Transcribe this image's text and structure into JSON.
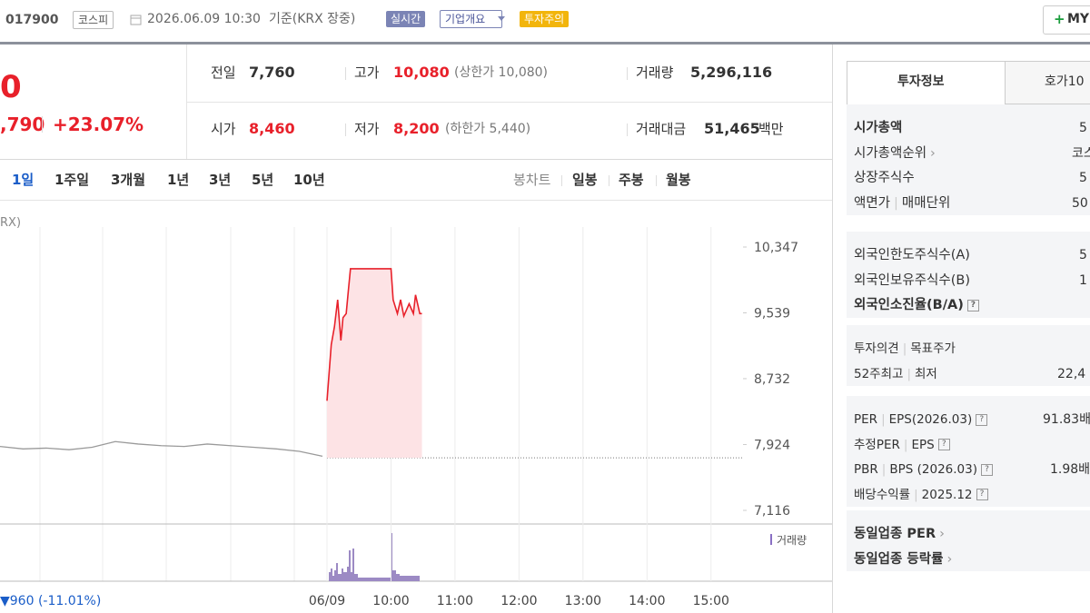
{
  "header": {
    "code": "017900",
    "market": "코스피",
    "timestamp": "2026.06.09 10:30",
    "basis": "기준(KRX 장중)",
    "badges": [
      "실시간",
      "기업개요",
      "투자주의"
    ],
    "my_button": "MY"
  },
  "quote": {
    "price": "0",
    "change": ",790",
    "rate": "+23.07%"
  },
  "stats": [
    {
      "label": "전일",
      "value": "7,760"
    },
    {
      "label": "고가",
      "value": "10,080",
      "note": "(상한가 10,080)"
    },
    {
      "label": "거래량",
      "value": "5,296,116"
    },
    {
      "label": "시가",
      "value": "8,460"
    },
    {
      "label": "저가",
      "value": "8,200",
      "note": "(하한가 5,440)"
    },
    {
      "label": "거래대금",
      "value": "51,465",
      "unit": "백만"
    }
  ],
  "periods": [
    "1일",
    "1주일",
    "3개월",
    "1년",
    "3년",
    "5년",
    "10년"
  ],
  "candle_label": "봉차트",
  "candle_types": [
    "일봉",
    "주봉",
    "월봉"
  ],
  "chart_data": {
    "type": "line",
    "source_label": "RX)",
    "volume_label": "거래량",
    "change_label": "▼960 (-11.01%)",
    "xlim": [
      "09:00",
      "15:30"
    ],
    "xticks": [
      {
        "value": "09:00",
        "label": "06/09"
      },
      "10:00",
      "11:00",
      "12:00",
      "13:00",
      "14:00",
      "15:00"
    ],
    "ylim": [
      6971,
      10592
    ],
    "yticks": [
      {
        "value": 10347,
        "label": "10,347"
      },
      {
        "value": 9539,
        "label": "9,539"
      },
      {
        "value": 8732,
        "label": "8,732"
      },
      {
        "value": 7924,
        "label": "7,924"
      },
      {
        "value": 7116,
        "label": "7,116"
      }
    ],
    "baseline": 7760,
    "previous": {
      "color": "#9a9a9a",
      "values": [
        7900,
        7870,
        7880,
        7860,
        7890,
        7960,
        7930,
        7910,
        7900,
        7930,
        7910,
        7890,
        7870,
        7840,
        7780
      ]
    },
    "series": [
      {
        "color": "#e8202a",
        "fill": "#fde3e5",
        "x": [
          "09:00",
          "09:04",
          "09:07",
          "09:10",
          "09:13",
          "09:15",
          "09:18",
          "09:20",
          "09:22",
          "10:00",
          "10:02",
          "10:06",
          "10:09",
          "10:12",
          "10:17",
          "10:21",
          "10:23",
          "10:27",
          "10:29"
        ],
        "values": [
          8460,
          9150,
          9370,
          9700,
          9200,
          9480,
          9530,
          9810,
          10080,
          10080,
          9700,
          9530,
          9700,
          9500,
          9650,
          9530,
          9760,
          9530,
          9530
        ]
      }
    ]
  },
  "invest_tabs": [
    "투자정보",
    "호가10"
  ],
  "invest_sections": [
    [
      {
        "label": "시가총액",
        "value": "5"
      },
      {
        "label": "시가총액순위",
        "value": "코스"
      },
      {
        "label": "상장주식수",
        "value": "5"
      },
      {
        "label": "액면가",
        "label2": "매매단위",
        "value": "50"
      }
    ],
    [
      {
        "label": "외국인한도주식수(A)",
        "value": "5"
      },
      {
        "label": "외국인보유주식수(B)",
        "value": "1"
      },
      {
        "label": "외국인소진율(B/A)"
      }
    ],
    [
      {
        "label": "투자의견",
        "label2": "목표주가"
      },
      {
        "label": "52주최고",
        "label2": "최저",
        "value": "22,4"
      }
    ],
    [
      {
        "label": "PER",
        "label2": "EPS(2026.03)",
        "value": "91.83배"
      },
      {
        "label": "추정PER",
        "label2": "EPS"
      },
      {
        "label": "PBR",
        "label2": "BPS (2026.03)",
        "value": "1.98배"
      },
      {
        "label": "배당수익률",
        "label2": "2025.12"
      }
    ],
    [
      {
        "label": "동일업종 PER"
      },
      {
        "label": "동일업종 등락률"
      }
    ]
  ]
}
